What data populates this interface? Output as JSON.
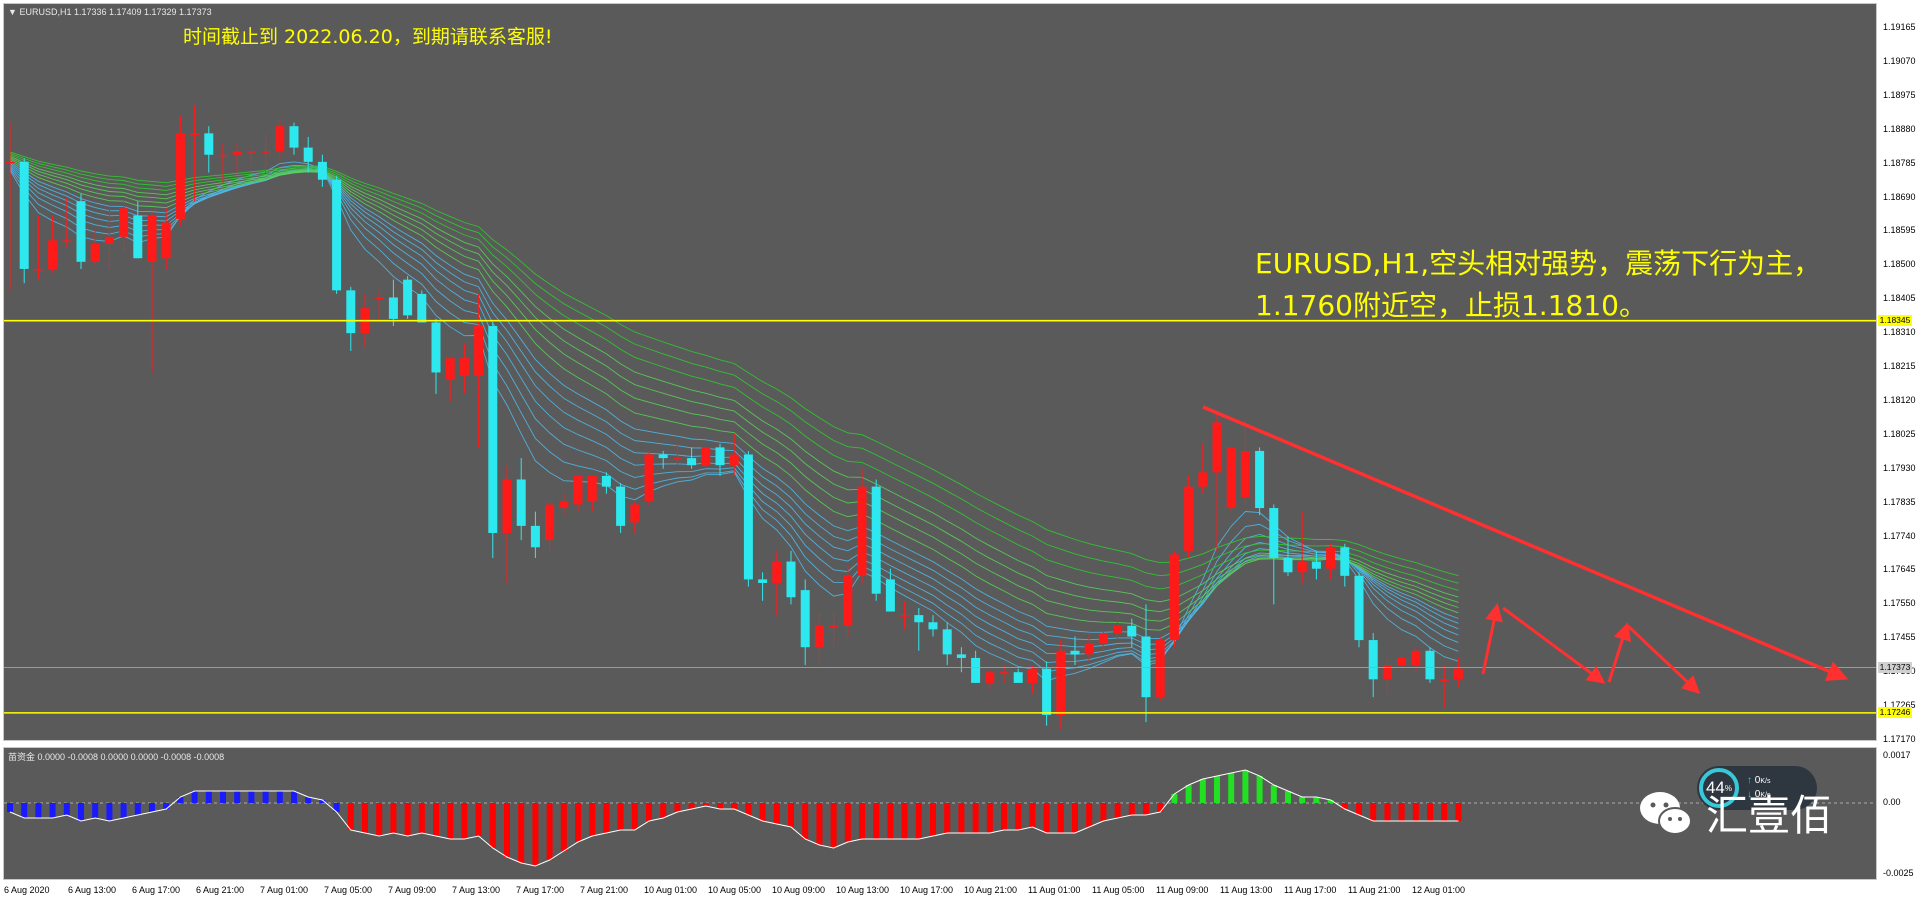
{
  "chart_header": {
    "arrow": "▼",
    "text": "EURUSD,H1  1.17336 1.17409 1.17329 1.17373"
  },
  "notice": "时间截止到 2022.06.20，到期请联系客服!",
  "analysis": {
    "line1": "EURUSD,H1,空头相对强势，震荡下行为主，",
    "line2": "1.1760附近空，止损1.1810。"
  },
  "indicator_header": "苗资金  0.0000 -0.0008 0.0000 0.0000 -0.0008 -0.0008",
  "price_ticks": [
    "1.19165",
    "1.19070",
    "1.18975",
    "1.18880",
    "1.18785",
    "1.18690",
    "1.18595",
    "1.18500",
    "1.18405",
    "1.18310",
    "1.18215",
    "1.18120",
    "1.18025",
    "1.17930",
    "1.17835",
    "1.17740",
    "1.17645",
    "1.17550",
    "1.17455",
    "1.17360",
    "1.17265",
    "1.17170"
  ],
  "price_badges": {
    "upper_level": "1.18345",
    "current_price": "1.17373",
    "lower_level": "1.17246"
  },
  "indicator_ticks": [
    "0.0017",
    "0.00",
    "-0.0025"
  ],
  "time_labels": [
    "6 Aug 2020",
    "6 Aug 13:00",
    "6 Aug 17:00",
    "6 Aug 21:00",
    "7 Aug 01:00",
    "7 Aug 05:00",
    "7 Aug 09:00",
    "7 Aug 13:00",
    "7 Aug 17:00",
    "7 Aug 21:00",
    "10 Aug 01:00",
    "10 Aug 05:00",
    "10 Aug 09:00",
    "10 Aug 13:00",
    "10 Aug 17:00",
    "10 Aug 21:00",
    "11 Aug 01:00",
    "11 Aug 05:00",
    "11 Aug 09:00",
    "11 Aug 13:00",
    "11 Aug 17:00",
    "11 Aug 21:00",
    "12 Aug 01:00"
  ],
  "watermark": {
    "icon": "wechat-icon",
    "text": "汇壹佰"
  },
  "speed_widget": {
    "value": "44",
    "unit": "%",
    "up_rate": "0",
    "up_unit": "K/s",
    "down_rate": "0",
    "down_unit": "K/s"
  },
  "colors": {
    "background": "#5a5a5a",
    "bull_candle": "#ff1a1a",
    "bear_candle": "#2ee8ef",
    "level_line": "#ffff00",
    "trend_arrow": "#ff3030",
    "histogram_red": "#ff0000",
    "histogram_green": "#22e022",
    "histogram_blue": "#1a1aff"
  },
  "chart_data": {
    "type": "candlestick",
    "symbol": "EURUSD",
    "timeframe": "H1",
    "ylim": [
      1.1717,
      1.1921
    ],
    "horizontal_levels": [
      1.18345,
      1.17246
    ],
    "current_price": 1.17373,
    "candles": [
      {
        "o": 1.1879,
        "h": 1.189,
        "l": 1.1843,
        "c": 1.1879
      },
      {
        "o": 1.1879,
        "h": 1.188,
        "l": 1.1845,
        "c": 1.1849
      },
      {
        "o": 1.1849,
        "h": 1.1864,
        "l": 1.1846,
        "c": 1.1849
      },
      {
        "o": 1.1849,
        "h": 1.1864,
        "l": 1.1848,
        "c": 1.1857
      },
      {
        "o": 1.1857,
        "h": 1.1869,
        "l": 1.1855,
        "c": 1.1857
      },
      {
        "o": 1.1868,
        "h": 1.187,
        "l": 1.1849,
        "c": 1.1851
      },
      {
        "o": 1.1851,
        "h": 1.186,
        "l": 1.185,
        "c": 1.1856
      },
      {
        "o": 1.1856,
        "h": 1.1866,
        "l": 1.1849,
        "c": 1.1858
      },
      {
        "o": 1.1858,
        "h": 1.1868,
        "l": 1.1854,
        "c": 1.1866
      },
      {
        "o": 1.1864,
        "h": 1.1868,
        "l": 1.1852,
        "c": 1.1852
      },
      {
        "o": 1.1851,
        "h": 1.1865,
        "l": 1.182,
        "c": 1.1864
      },
      {
        "o": 1.1852,
        "h": 1.1866,
        "l": 1.1849,
        "c": 1.1862
      },
      {
        "o": 1.1863,
        "h": 1.1892,
        "l": 1.1861,
        "c": 1.1887
      },
      {
        "o": 1.1887,
        "h": 1.1895,
        "l": 1.1868,
        "c": 1.1887
      },
      {
        "o": 1.1887,
        "h": 1.1889,
        "l": 1.1876,
        "c": 1.1881
      },
      {
        "o": 1.1881,
        "h": 1.1884,
        "l": 1.1873,
        "c": 1.1881
      },
      {
        "o": 1.1881,
        "h": 1.1884,
        "l": 1.1876,
        "c": 1.1882
      },
      {
        "o": 1.1882,
        "h": 1.1883,
        "l": 1.1878,
        "c": 1.1882
      },
      {
        "o": 1.1882,
        "h": 1.1887,
        "l": 1.1876,
        "c": 1.1882
      },
      {
        "o": 1.1882,
        "h": 1.1891,
        "l": 1.188,
        "c": 1.1889
      },
      {
        "o": 1.1889,
        "h": 1.189,
        "l": 1.1881,
        "c": 1.1883
      },
      {
        "o": 1.1883,
        "h": 1.1886,
        "l": 1.1876,
        "c": 1.1879
      },
      {
        "o": 1.1879,
        "h": 1.1881,
        "l": 1.1872,
        "c": 1.1874
      },
      {
        "o": 1.1874,
        "h": 1.1875,
        "l": 1.1842,
        "c": 1.1843
      },
      {
        "o": 1.1843,
        "h": 1.1844,
        "l": 1.1826,
        "c": 1.1831
      },
      {
        "o": 1.1831,
        "h": 1.1842,
        "l": 1.1827,
        "c": 1.1838
      },
      {
        "o": 1.1841,
        "h": 1.1843,
        "l": 1.1834,
        "c": 1.1841
      },
      {
        "o": 1.1841,
        "h": 1.1846,
        "l": 1.1833,
        "c": 1.1835
      },
      {
        "o": 1.1846,
        "h": 1.1847,
        "l": 1.1835,
        "c": 1.1836
      },
      {
        "o": 1.1842,
        "h": 1.1843,
        "l": 1.1834,
        "c": 1.1834
      },
      {
        "o": 1.1834,
        "h": 1.1835,
        "l": 1.1814,
        "c": 1.182
      },
      {
        "o": 1.1818,
        "h": 1.1823,
        "l": 1.1812,
        "c": 1.1824
      },
      {
        "o": 1.1819,
        "h": 1.1828,
        "l": 1.1814,
        "c": 1.1824
      },
      {
        "o": 1.1819,
        "h": 1.1842,
        "l": 1.1799,
        "c": 1.1833
      },
      {
        "o": 1.1833,
        "h": 1.1834,
        "l": 1.1768,
        "c": 1.1775
      },
      {
        "o": 1.1775,
        "h": 1.1794,
        "l": 1.1761,
        "c": 1.179
      },
      {
        "o": 1.179,
        "h": 1.1796,
        "l": 1.1773,
        "c": 1.1777
      },
      {
        "o": 1.1777,
        "h": 1.1781,
        "l": 1.1768,
        "c": 1.1771
      },
      {
        "o": 1.1773,
        "h": 1.1784,
        "l": 1.177,
        "c": 1.1783
      },
      {
        "o": 1.1782,
        "h": 1.1786,
        "l": 1.178,
        "c": 1.1784
      },
      {
        "o": 1.1783,
        "h": 1.1791,
        "l": 1.1781,
        "c": 1.1791
      },
      {
        "o": 1.1784,
        "h": 1.1791,
        "l": 1.1781,
        "c": 1.1791
      },
      {
        "o": 1.1791,
        "h": 1.1792,
        "l": 1.1786,
        "c": 1.1788
      },
      {
        "o": 1.1788,
        "h": 1.1789,
        "l": 1.1775,
        "c": 1.1777
      },
      {
        "o": 1.1778,
        "h": 1.1784,
        "l": 1.1775,
        "c": 1.1783
      },
      {
        "o": 1.1784,
        "h": 1.1798,
        "l": 1.1783,
        "c": 1.1797
      },
      {
        "o": 1.1797,
        "h": 1.1798,
        "l": 1.1793,
        "c": 1.1796
      },
      {
        "o": 1.1796,
        "h": 1.18,
        "l": 1.1794,
        "c": 1.1796
      },
      {
        "o": 1.1796,
        "h": 1.1799,
        "l": 1.1793,
        "c": 1.1794
      },
      {
        "o": 1.1794,
        "h": 1.1799,
        "l": 1.1793,
        "c": 1.1799
      },
      {
        "o": 1.1799,
        "h": 1.18,
        "l": 1.1791,
        "c": 1.1794
      },
      {
        "o": 1.1794,
        "h": 1.1803,
        "l": 1.1791,
        "c": 1.1797
      },
      {
        "o": 1.1797,
        "h": 1.1798,
        "l": 1.176,
        "c": 1.1762
      },
      {
        "o": 1.1762,
        "h": 1.1764,
        "l": 1.1756,
        "c": 1.1761
      },
      {
        "o": 1.1761,
        "h": 1.177,
        "l": 1.1752,
        "c": 1.1767
      },
      {
        "o": 1.1767,
        "h": 1.177,
        "l": 1.1755,
        "c": 1.1757
      },
      {
        "o": 1.1759,
        "h": 1.1762,
        "l": 1.1738,
        "c": 1.1743
      },
      {
        "o": 1.1743,
        "h": 1.1753,
        "l": 1.1738,
        "c": 1.1749
      },
      {
        "o": 1.1749,
        "h": 1.1753,
        "l": 1.1743,
        "c": 1.1749
      },
      {
        "o": 1.1749,
        "h": 1.1766,
        "l": 1.1746,
        "c": 1.1763
      },
      {
        "o": 1.1763,
        "h": 1.1793,
        "l": 1.1761,
        "c": 1.1788
      },
      {
        "o": 1.1788,
        "h": 1.179,
        "l": 1.1756,
        "c": 1.1758
      },
      {
        "o": 1.1762,
        "h": 1.1765,
        "l": 1.1753,
        "c": 1.1753
      },
      {
        "o": 1.1752,
        "h": 1.1756,
        "l": 1.1748,
        "c": 1.1752
      },
      {
        "o": 1.1752,
        "h": 1.1754,
        "l": 1.1742,
        "c": 1.175
      },
      {
        "o": 1.175,
        "h": 1.1752,
        "l": 1.1746,
        "c": 1.1748
      },
      {
        "o": 1.1748,
        "h": 1.175,
        "l": 1.1738,
        "c": 1.1741
      },
      {
        "o": 1.1741,
        "h": 1.1743,
        "l": 1.1736,
        "c": 1.174
      },
      {
        "o": 1.174,
        "h": 1.1742,
        "l": 1.1733,
        "c": 1.1733
      },
      {
        "o": 1.1733,
        "h": 1.1737,
        "l": 1.1731,
        "c": 1.1736
      },
      {
        "o": 1.1736,
        "h": 1.1738,
        "l": 1.1733,
        "c": 1.1736
      },
      {
        "o": 1.1736,
        "h": 1.1737,
        "l": 1.1733,
        "c": 1.1733
      },
      {
        "o": 1.1733,
        "h": 1.1738,
        "l": 1.173,
        "c": 1.1737
      },
      {
        "o": 1.1737,
        "h": 1.1739,
        "l": 1.1721,
        "c": 1.1724
      },
      {
        "o": 1.1724,
        "h": 1.1745,
        "l": 1.172,
        "c": 1.1742
      },
      {
        "o": 1.1742,
        "h": 1.1746,
        "l": 1.1738,
        "c": 1.1741
      },
      {
        "o": 1.1741,
        "h": 1.1747,
        "l": 1.1739,
        "c": 1.1744
      },
      {
        "o": 1.1744,
        "h": 1.1748,
        "l": 1.1742,
        "c": 1.1747
      },
      {
        "o": 1.1747,
        "h": 1.1752,
        "l": 1.1745,
        "c": 1.1749
      },
      {
        "o": 1.1749,
        "h": 1.1751,
        "l": 1.1743,
        "c": 1.1746
      },
      {
        "o": 1.1746,
        "h": 1.1755,
        "l": 1.1722,
        "c": 1.1729
      },
      {
        "o": 1.1729,
        "h": 1.1746,
        "l": 1.1728,
        "c": 1.1745
      },
      {
        "o": 1.1745,
        "h": 1.177,
        "l": 1.1743,
        "c": 1.1769
      },
      {
        "o": 1.177,
        "h": 1.1791,
        "l": 1.1768,
        "c": 1.1788
      },
      {
        "o": 1.1788,
        "h": 1.18,
        "l": 1.1786,
        "c": 1.1792
      },
      {
        "o": 1.1792,
        "h": 1.1809,
        "l": 1.177,
        "c": 1.1806
      },
      {
        "o": 1.1782,
        "h": 1.1799,
        "l": 1.1781,
        "c": 1.1799
      },
      {
        "o": 1.1785,
        "h": 1.1807,
        "l": 1.1783,
        "c": 1.1798
      },
      {
        "o": 1.1798,
        "h": 1.1799,
        "l": 1.178,
        "c": 1.1782
      },
      {
        "o": 1.1782,
        "h": 1.1783,
        "l": 1.1755,
        "c": 1.1768
      },
      {
        "o": 1.1768,
        "h": 1.1774,
        "l": 1.1763,
        "c": 1.1764
      },
      {
        "o": 1.1764,
        "h": 1.1781,
        "l": 1.1761,
        "c": 1.1767
      },
      {
        "o": 1.1767,
        "h": 1.177,
        "l": 1.1762,
        "c": 1.1765
      },
      {
        "o": 1.1765,
        "h": 1.1772,
        "l": 1.1762,
        "c": 1.1771
      },
      {
        "o": 1.1771,
        "h": 1.1772,
        "l": 1.176,
        "c": 1.1763
      },
      {
        "o": 1.1763,
        "h": 1.1764,
        "l": 1.1743,
        "c": 1.1745
      },
      {
        "o": 1.1745,
        "h": 1.1747,
        "l": 1.1729,
        "c": 1.1734
      },
      {
        "o": 1.1734,
        "h": 1.174,
        "l": 1.173,
        "c": 1.1738
      },
      {
        "o": 1.1738,
        "h": 1.1741,
        "l": 1.1736,
        "c": 1.174
      },
      {
        "o": 1.1738,
        "h": 1.1743,
        "l": 1.1736,
        "c": 1.1742
      },
      {
        "o": 1.1742,
        "h": 1.1743,
        "l": 1.1733,
        "c": 1.1734
      },
      {
        "o": 1.1734,
        "h": 1.1738,
        "l": 1.1726,
        "c": 1.1734
      },
      {
        "o": 1.1734,
        "h": 1.174,
        "l": 1.1732,
        "c": 1.1737
      }
    ],
    "indicator": {
      "name": "苗资金",
      "ylim": [
        -0.0025,
        0.0017
      ],
      "values": [
        -0.0003,
        -0.0005,
        -0.0005,
        -0.0005,
        -0.0004,
        -0.0006,
        -0.0005,
        -0.0006,
        -0.0005,
        -0.0004,
        -0.0003,
        -0.0002,
        0.0002,
        0.0004,
        0.0004,
        0.0004,
        0.0004,
        0.0004,
        0.0004,
        0.0004,
        0.0004,
        0.0002,
        0.0001,
        -0.0003,
        -0.0009,
        -0.001,
        -0.0011,
        -0.001,
        -0.0011,
        -0.001,
        -0.0011,
        -0.0012,
        -0.0012,
        -0.0011,
        -0.0015,
        -0.0018,
        -0.002,
        -0.0021,
        -0.0019,
        -0.0016,
        -0.0013,
        -0.0011,
        -0.001,
        -0.0009,
        -0.0009,
        -0.0006,
        -0.0005,
        -0.0003,
        -0.0002,
        -0.0001,
        -0.0002,
        -0.0002,
        -0.0004,
        -0.0006,
        -0.0007,
        -0.0008,
        -0.0012,
        -0.0014,
        -0.0015,
        -0.0013,
        -0.0012,
        -0.0012,
        -0.0012,
        -0.0012,
        -0.0012,
        -0.0011,
        -0.001,
        -0.001,
        -0.001,
        -0.001,
        -0.0009,
        -0.0009,
        -0.0008,
        -0.001,
        -0.001,
        -0.001,
        -0.0008,
        -0.0006,
        -0.0005,
        -0.0004,
        -0.0004,
        -0.0003,
        0.0003,
        0.0006,
        0.0008,
        0.0009,
        0.001,
        0.0011,
        0.0009,
        0.0006,
        0.0004,
        0.0002,
        0.0002,
        0.0001,
        -0.0002,
        -0.0004,
        -0.0006,
        -0.0006,
        -0.0006,
        -0.0006,
        -0.0006,
        -0.0006,
        -0.0006
      ]
    }
  }
}
